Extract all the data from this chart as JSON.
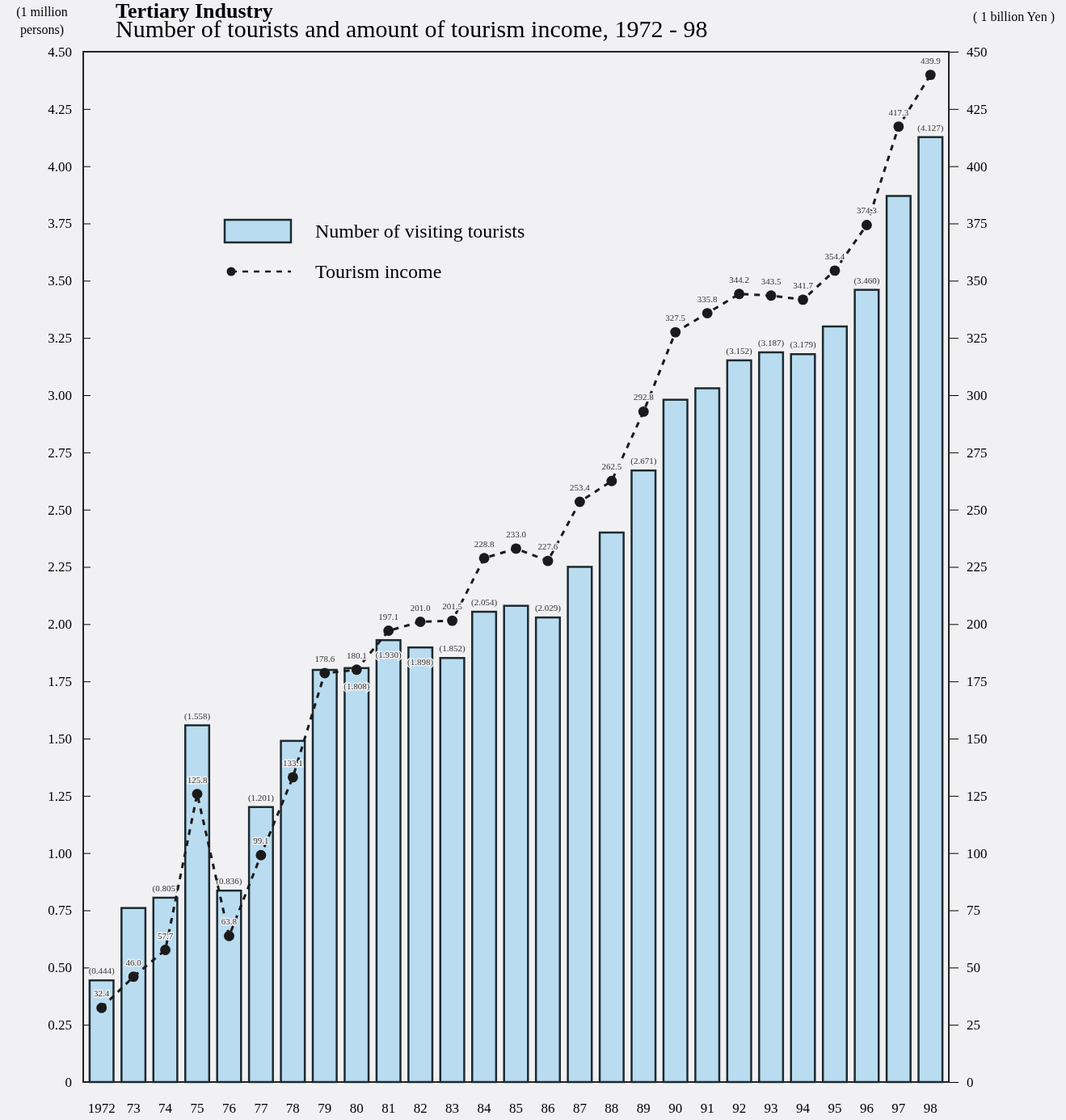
{
  "chart_data": {
    "type": "bar",
    "title": "Tertiary Industry",
    "subtitle": "Number of tourists and amount of tourism income, 1972 - 98",
    "ylabel": "(1 million persons)",
    "y2label": "( 1 billion Yen )",
    "categories": [
      "1972",
      "73",
      "74",
      "75",
      "76",
      "77",
      "78",
      "79",
      "80",
      "81",
      "82",
      "83",
      "84",
      "85",
      "86",
      "87",
      "88",
      "89",
      "90",
      "91",
      "92",
      "93",
      "94",
      "95",
      "96",
      "97",
      "98"
    ],
    "series": [
      {
        "name": "Number of visiting tourists",
        "color": "#b9dcf0",
        "values": [
          0.444,
          0.76,
          0.805,
          1.558,
          0.836,
          1.201,
          1.49,
          1.8,
          1.808,
          1.93,
          1.898,
          1.852,
          2.054,
          2.08,
          2.029,
          2.25,
          2.4,
          2.671,
          2.98,
          3.03,
          3.152,
          3.187,
          3.179,
          3.3,
          3.46,
          3.87,
          4.127
        ],
        "value_labels": [
          "(0.444)",
          null,
          "(0.805)",
          "(1.558)",
          "(0.836)",
          "(1.201)",
          null,
          null,
          "(1.808)",
          "(1.930)",
          "(1.898)",
          "(1.852)",
          "(2.054)",
          null,
          "(2.029)",
          null,
          null,
          "(2.671)",
          null,
          null,
          "(3.152)",
          "(3.187)",
          "(3.179)",
          null,
          "(3.460)",
          null,
          "(4.127)"
        ]
      },
      {
        "name": "Tourism income",
        "type": "line",
        "axis": "y2",
        "color": "#1a1a1a",
        "marker": "circle",
        "line_style": "dashed",
        "values": [
          32.4,
          46.0,
          57.7,
          125.8,
          63.8,
          99.1,
          133.1,
          178.6,
          180.1,
          197.1,
          201.0,
          201.5,
          228.8,
          233.0,
          227.6,
          253.4,
          262.5,
          292.8,
          327.5,
          335.8,
          344.2,
          343.5,
          341.7,
          354.4,
          374.3,
          417.3,
          439.9
        ],
        "value_labels": [
          "32.4",
          "46.0",
          "57.7",
          "125.8",
          "63.8",
          "99.1",
          "133.1",
          "178.6",
          "180.1",
          "197.1",
          "201.0",
          "201.5",
          "228.8",
          "233.0",
          "227.6",
          "253.4",
          "262.5",
          "292.8",
          "327.5",
          "335.8",
          "344.2",
          "343.5",
          "341.7",
          "354.4",
          "374.3",
          "417.3",
          "439.9"
        ]
      }
    ],
    "ylim": [
      0,
      4.5
    ],
    "yticks": [
      {
        "value": 0,
        "label": "0"
      },
      {
        "value": 0.25,
        "label": "0.25"
      },
      {
        "value": 0.5,
        "label": "0.50"
      },
      {
        "value": 0.75,
        "label": "0.75"
      },
      {
        "value": 1,
        "label": "1.00"
      },
      {
        "value": 1.25,
        "label": "1.25"
      },
      {
        "value": 1.5,
        "label": "1.50"
      },
      {
        "value": 1.75,
        "label": "1.75"
      },
      {
        "value": 2,
        "label": "2.00"
      },
      {
        "value": 2.25,
        "label": "2.25"
      },
      {
        "value": 2.5,
        "label": "2.50"
      },
      {
        "value": 2.75,
        "label": "2.75"
      },
      {
        "value": 3,
        "label": "3.00"
      },
      {
        "value": 3.25,
        "label": "3.25"
      },
      {
        "value": 3.5,
        "label": "3.50"
      },
      {
        "value": 3.75,
        "label": "3.75"
      },
      {
        "value": 4,
        "label": "4.00"
      },
      {
        "value": 4.25,
        "label": "4.25"
      },
      {
        "value": 4.5,
        "label": "4.50"
      }
    ],
    "y2lim": [
      0,
      450
    ],
    "y2ticks": [
      0,
      25,
      50,
      75,
      100,
      125,
      150,
      175,
      200,
      225,
      250,
      275,
      300,
      325,
      350,
      375,
      400,
      425,
      450
    ],
    "legend": "top left",
    "grid": false
  }
}
